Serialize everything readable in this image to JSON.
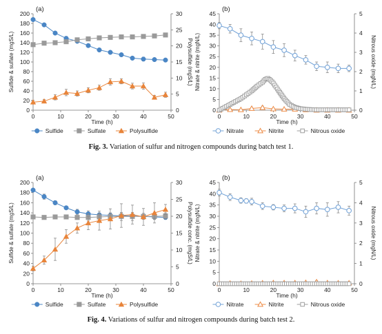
{
  "captions": [
    {
      "label": "Fig. 3.",
      "text": "Variation of sulfur and nitrogen compounds during batch test 1."
    },
    {
      "label": "Fig. 4.",
      "text": "Variations of sulfur and nitrogen compounds during batch test 2."
    }
  ],
  "colors": {
    "sulfide": "#4a86c5",
    "sulfate": "#9a9a9a",
    "polysulfide": "#e8843a",
    "nitrate": "#6fa0d6",
    "nitrite": "#ed8b45",
    "nitrous_oxide": "#9e9e9e"
  },
  "chart_data": [
    {
      "type": "line",
      "panel": "(a)",
      "xlabel": "Time (h)",
      "ylabel": "Sulfide & sulfate  (mgS/L)",
      "y2label": "Polysulfide  (mgS/L)",
      "xlim": [
        0,
        50
      ],
      "ylim": [
        0,
        200
      ],
      "y2lim": [
        0,
        30
      ],
      "xticks": [
        "0",
        "10",
        "20",
        "30",
        "40",
        "50"
      ],
      "yticks": [
        "0",
        "20",
        "40",
        "60",
        "80",
        "100",
        "120",
        "140",
        "160",
        "180",
        "200"
      ],
      "y2ticks": [
        "0",
        "5",
        "10",
        "15",
        "20",
        "25",
        "30"
      ],
      "legend_position": "bottom",
      "series": [
        {
          "name": "Sulfide",
          "axis": "left",
          "marker": "circle",
          "x": [
            0,
            4,
            8,
            12,
            16,
            20,
            24,
            28,
            32,
            36,
            40,
            44,
            48
          ],
          "y": [
            188,
            177,
            160,
            149,
            143,
            134,
            125,
            120,
            115,
            108,
            106,
            105,
            104
          ],
          "err": [
            3,
            2,
            3,
            4,
            3,
            2,
            3,
            2,
            3,
            3,
            4,
            3,
            3
          ]
        },
        {
          "name": "Sulfate",
          "axis": "left",
          "marker": "square",
          "x": [
            0,
            4,
            8,
            12,
            16,
            20,
            24,
            28,
            32,
            36,
            40,
            44,
            48
          ],
          "y": [
            136,
            139,
            140,
            142,
            146,
            148,
            150,
            151,
            152,
            152,
            153,
            154,
            156
          ],
          "err": [
            3,
            3,
            2,
            3,
            3,
            2,
            3,
            3,
            3,
            3,
            3,
            3,
            4
          ]
        },
        {
          "name": "Polysulfide",
          "axis": "right",
          "marker": "triangle",
          "x": [
            0,
            4,
            8,
            12,
            16,
            20,
            24,
            28,
            32,
            36,
            40,
            44,
            48
          ],
          "y": [
            2.5,
            2.8,
            4.0,
            5.5,
            5.2,
            6.2,
            7.0,
            8.8,
            9.0,
            7.5,
            7.5,
            4.0,
            4.8
          ],
          "err": [
            0.6,
            0.5,
            0.8,
            1.0,
            0.8,
            0.8,
            0.8,
            1.0,
            0.8,
            0.9,
            1.0,
            0.6,
            0.8
          ]
        }
      ]
    },
    {
      "type": "line",
      "panel": "(b)",
      "xlabel": "Time (h)",
      "ylabel": "Nitrate & nitrite (mgN/L)",
      "y2label": "Nitrous oxide  (mgN/L)",
      "xlim": [
        0,
        50
      ],
      "ylim": [
        0,
        45
      ],
      "y2lim": [
        0,
        5
      ],
      "xticks": [
        "0",
        "10",
        "20",
        "30",
        "40",
        "50"
      ],
      "yticks": [
        "0",
        "5",
        "10",
        "15",
        "20",
        "25",
        "30",
        "35",
        "40",
        "45"
      ],
      "y2ticks": [
        "0",
        "1",
        "2",
        "3",
        "4",
        "5"
      ],
      "legend_position": "bottom",
      "series": [
        {
          "name": "Nitrate",
          "axis": "left",
          "marker": "circle-open",
          "x": [
            0,
            4,
            8,
            12,
            16,
            20,
            24,
            28,
            32,
            36,
            40,
            44,
            48
          ],
          "y": [
            39.5,
            38,
            35,
            33.5,
            32,
            29.5,
            28,
            25.5,
            23.5,
            20.5,
            20,
            19.5,
            19.5
          ],
          "err": [
            1.5,
            2,
            3,
            3,
            3.5,
            3,
            3,
            2.5,
            2,
            2,
            2.5,
            2,
            1.5
          ]
        },
        {
          "name": "Nitrite",
          "axis": "left",
          "marker": "triangle-open",
          "x": [
            0,
            4,
            8,
            12,
            16,
            20,
            24,
            28,
            32,
            36,
            40,
            44,
            48
          ],
          "y": [
            0,
            0.3,
            0.2,
            0.8,
            1.2,
            0.6,
            0.5,
            0.5,
            0.2,
            0,
            0,
            0,
            0
          ],
          "err": [
            0.1,
            0.3,
            0.3,
            0.5,
            0.7,
            0.4,
            0.3,
            0.3,
            0.2,
            0.1,
            0.1,
            0.1,
            0.1
          ]
        },
        {
          "name": "Nitrous oxide",
          "axis": "right",
          "marker": "square-open",
          "dense": true,
          "x": [
            0,
            4,
            8,
            10,
            12,
            14,
            16,
            17,
            18,
            19,
            20,
            21,
            22,
            24,
            26,
            28,
            30,
            32,
            34,
            36,
            40,
            44,
            48
          ],
          "y": [
            0,
            0.3,
            0.6,
            0.8,
            1.0,
            1.25,
            1.45,
            1.6,
            1.65,
            1.55,
            1.4,
            1.2,
            1.0,
            0.6,
            0.3,
            0.15,
            0.08,
            0.05,
            0.03,
            0.02,
            0.02,
            0.02,
            0.02
          ]
        }
      ]
    },
    {
      "type": "line",
      "panel": "(a)",
      "xlabel": "Time (h)",
      "ylabel": "Sulfide & sulfate  (mgS/L)",
      "y2label": "Polysulfide conc.  (mgS/L)",
      "xlim": [
        0,
        50
      ],
      "ylim": [
        0,
        200
      ],
      "y2lim": [
        0,
        30
      ],
      "xticks": [
        "0",
        "10",
        "20",
        "30",
        "40",
        "50"
      ],
      "yticks": [
        "0",
        "20",
        "40",
        "60",
        "80",
        "100",
        "120",
        "140",
        "160",
        "180",
        "200"
      ],
      "y2ticks": [
        "0",
        "5",
        "10",
        "15",
        "20",
        "25",
        "30"
      ],
      "legend_position": "bottom",
      "series": [
        {
          "name": "Sulfide",
          "axis": "left",
          "marker": "circle",
          "x": [
            0,
            4,
            8,
            12,
            16,
            20,
            24,
            28,
            32,
            36,
            40,
            44,
            48
          ],
          "y": [
            185,
            172,
            160,
            150,
            142,
            138,
            136,
            135,
            134,
            134,
            133,
            132,
            131
          ],
          "err": [
            3,
            5,
            4,
            3,
            5,
            6,
            4,
            4,
            5,
            5,
            4,
            4,
            4
          ]
        },
        {
          "name": "Sulfate",
          "axis": "left",
          "marker": "square",
          "x": [
            0,
            4,
            8,
            12,
            16,
            20,
            24,
            28,
            32,
            36,
            40,
            44,
            48
          ],
          "y": [
            132,
            131,
            132,
            132,
            131,
            131,
            132,
            133,
            133,
            133,
            133,
            133,
            134
          ],
          "err": [
            4,
            3,
            3,
            4,
            4,
            7,
            6,
            7,
            8,
            8,
            6,
            6,
            6
          ]
        },
        {
          "name": "Polysulfide",
          "axis": "right",
          "marker": "triangle",
          "x": [
            0,
            4,
            8,
            12,
            16,
            20,
            24,
            28,
            32,
            36,
            40,
            44,
            48
          ],
          "y": [
            4.5,
            7.0,
            10.2,
            14.0,
            16.5,
            18.0,
            18.7,
            19.2,
            20.2,
            20.5,
            19.8,
            21.0,
            22.0
          ],
          "err": [
            0.7,
            1.2,
            3.3,
            2.0,
            1.5,
            2.0,
            2.8,
            3.0,
            3.5,
            2.8,
            2.5,
            3.0,
            1.5
          ]
        }
      ]
    },
    {
      "type": "line",
      "panel": "(b)",
      "xlabel": "Time (h)",
      "ylabel": "Nitrate & nitrite (mgN/L)",
      "y2label": "Nitrous oxide  (mgN/L)",
      "xlim": [
        0,
        50
      ],
      "ylim": [
        0,
        45
      ],
      "y2lim": [
        0,
        5
      ],
      "xticks": [
        "0",
        "10",
        "20",
        "30",
        "40",
        "50"
      ],
      "yticks": [
        "0",
        "5",
        "10",
        "15",
        "20",
        "25",
        "30",
        "35",
        "40",
        "45"
      ],
      "y2ticks": [
        "0",
        "1",
        "2",
        "3",
        "4",
        "5"
      ],
      "legend_position": "bottom",
      "series": [
        {
          "name": "Nitrate",
          "axis": "left",
          "marker": "circle-open",
          "x": [
            0,
            4,
            8,
            10,
            12,
            16,
            20,
            24,
            28,
            32,
            36,
            40,
            44,
            48
          ],
          "y": [
            40.5,
            38.5,
            37,
            36.8,
            36.5,
            34.5,
            34,
            33.5,
            33.5,
            32,
            33.5,
            33,
            34,
            32.5
          ],
          "err": [
            1.5,
            1.5,
            1.2,
            1,
            1.5,
            1.5,
            1.2,
            1.5,
            2,
            2.5,
            2.5,
            3,
            2.5,
            2
          ]
        },
        {
          "name": "Nitrite",
          "axis": "left",
          "marker": "triangle-open",
          "x": [
            0,
            4,
            8,
            12,
            16,
            20,
            24,
            28,
            32,
            36,
            40,
            44,
            48
          ],
          "y": [
            0,
            0.2,
            0.1,
            0.2,
            0.3,
            0.4,
            0.4,
            0.4,
            0.5,
            0.8,
            0.4,
            0.3,
            0.3
          ],
          "err": [
            0.1,
            0.2,
            0.2,
            0.2,
            0.3,
            0.3,
            0.3,
            0.4,
            0.4,
            0.6,
            0.3,
            0.3,
            0.3
          ]
        },
        {
          "name": "Nitrous oxide",
          "axis": "right",
          "marker": "square-open",
          "dense": true,
          "x": [
            0,
            8,
            16,
            24,
            32,
            40,
            48
          ],
          "y": [
            0,
            0,
            0,
            0,
            0,
            0,
            0
          ]
        }
      ]
    }
  ]
}
